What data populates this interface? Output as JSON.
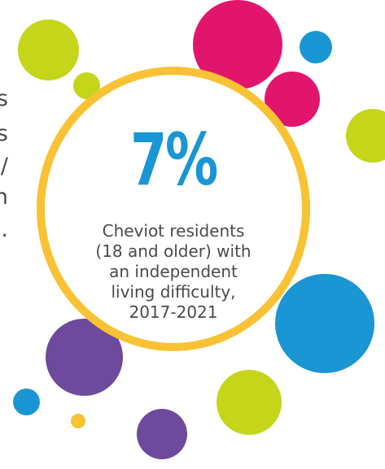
{
  "edge_text": [
    "s",
    "s",
    "/",
    "h",
    "."
  ],
  "stat": {
    "value": "7%",
    "description": "Cheviot residents (18 and older) with an independent living difficulty, 2017-2021"
  },
  "colors": {
    "pink": "#e2156d",
    "lime": "#c4d51a",
    "blue": "#1996d3",
    "purple": "#6d4a9b",
    "yellow": "#f8c234",
    "text": "#4a4a4a"
  }
}
